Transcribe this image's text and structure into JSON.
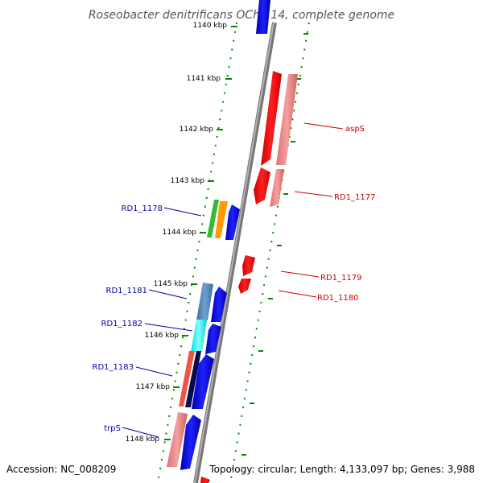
{
  "title": "Roseobacter denitrificans OCh 114, complete genome",
  "footer": {
    "accession": "Accession: NC_008209",
    "topology": "Topology: circular; Length: 4,133,097 bp; Genes: 3,988"
  },
  "ticks": [
    {
      "label": "1140 kbp",
      "kbp": 1140
    },
    {
      "label": "1141 kbp",
      "kbp": 1141
    },
    {
      "label": "1142 kbp",
      "kbp": 1142
    },
    {
      "label": "1143 kbp",
      "kbp": 1143
    },
    {
      "label": "1144 kbp",
      "kbp": 1144
    },
    {
      "label": "1145 kbp",
      "kbp": 1145
    },
    {
      "label": "1146 kbp",
      "kbp": 1146
    },
    {
      "label": "1147 kbp",
      "kbp": 1147
    },
    {
      "label": "1148 kbp",
      "kbp": 1148
    }
  ],
  "gene_labels": [
    {
      "name": "RD1_1178",
      "side": "left"
    },
    {
      "name": "RD1_1181",
      "side": "left"
    },
    {
      "name": "RD1_1182",
      "side": "left"
    },
    {
      "name": "RD1_1183",
      "side": "left"
    },
    {
      "name": "trpS",
      "side": "left"
    },
    {
      "name": "aspS",
      "side": "right"
    },
    {
      "name": "RD1_1177",
      "side": "right"
    },
    {
      "name": "RD1_1179",
      "side": "right"
    },
    {
      "name": "RD1_1180",
      "side": "right"
    }
  ],
  "colors": {
    "backbone": "#888888",
    "tick_green": "#008800",
    "forward_gene": "#0000ff",
    "reverse_gene": "#ff0000",
    "pink": "#ee7777",
    "label_blue": "#0000aa",
    "label_red": "#cc0000"
  }
}
